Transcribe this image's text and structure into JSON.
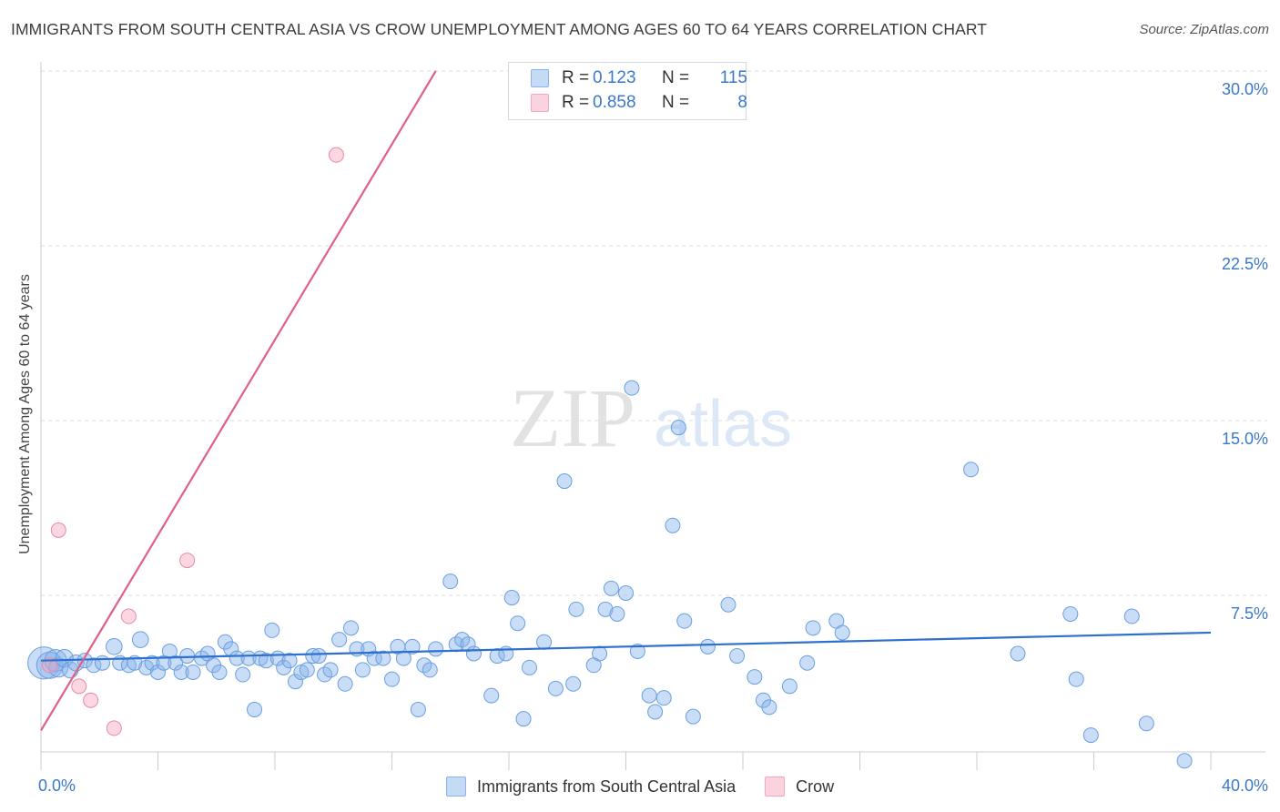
{
  "header": {
    "title": "IMMIGRANTS FROM SOUTH CENTRAL ASIA VS CROW UNEMPLOYMENT AMONG AGES 60 TO 64 YEARS CORRELATION CHART",
    "source": "Source: ZipAtlas.com"
  },
  "watermark": {
    "zip": "ZIP",
    "atlas": "atlas"
  },
  "legend_top": {
    "rows": [
      {
        "r_label": "R =",
        "r_value": "0.123",
        "n_label": "N =",
        "n_value": "115",
        "color": "#8ab4ea"
      },
      {
        "r_label": "R =",
        "r_value": "0.858",
        "n_label": "N =",
        "n_value": "8",
        "color": "#f4a7bd"
      }
    ]
  },
  "legend_bottom": {
    "items": [
      {
        "label": "Immigrants from South Central Asia",
        "color": "#8ab4ea"
      },
      {
        "label": "Crow",
        "color": "#f4a7bd"
      }
    ]
  },
  "chart_data": {
    "type": "scatter",
    "title": "IMMIGRANTS FROM SOUTH CENTRAL ASIA VS CROW UNEMPLOYMENT AMONG AGES 60 TO 64 YEARS CORRELATION CHART",
    "xlabel": "",
    "ylabel": "Unemployment Among Ages 60 to 64 years",
    "xlim": [
      0,
      40
    ],
    "ylim": [
      0,
      30
    ],
    "x_tick_labels": [
      "0.0%",
      "40.0%"
    ],
    "y_ticks": [
      7.5,
      15.0,
      22.5,
      30.0
    ],
    "y_tick_labels": [
      "7.5%",
      "15.0%",
      "22.5%",
      "30.0%"
    ],
    "grid": "horizontal dashed",
    "legend_position": "top-center",
    "series": [
      {
        "name": "Immigrants from South Central Asia",
        "color": "#8ab4ea",
        "stroke": "#6a9fe0",
        "trend": {
          "x": [
            0,
            40
          ],
          "y": [
            4.7,
            5.9
          ],
          "color": "#2f6fd0"
        },
        "points": [
          [
            0.1,
            4.6,
            2.2
          ],
          [
            0.3,
            4.5,
            1.8
          ],
          [
            0.5,
            4.7,
            1.5
          ],
          [
            0.6,
            4.4,
            1.3
          ],
          [
            0.8,
            4.8,
            1.2
          ],
          [
            1.0,
            4.3,
            1.1
          ],
          [
            1.2,
            4.6,
            1.1
          ],
          [
            1.5,
            4.7,
            1.0
          ],
          [
            1.8,
            4.5,
            1.0
          ],
          [
            2.1,
            4.6,
            1.0
          ],
          [
            2.5,
            5.3,
            1.1
          ],
          [
            2.7,
            4.6,
            1.0
          ],
          [
            3.0,
            4.5,
            1.0
          ],
          [
            3.2,
            4.6,
            1.0
          ],
          [
            3.4,
            5.6,
            1.1
          ],
          [
            3.6,
            4.4,
            1.0
          ],
          [
            3.8,
            4.6,
            1.0
          ],
          [
            4.0,
            4.2,
            1.0
          ],
          [
            4.2,
            4.6,
            1.0
          ],
          [
            4.4,
            5.1,
            1.0
          ],
          [
            4.6,
            4.6,
            1.0
          ],
          [
            4.8,
            4.2,
            1.0
          ],
          [
            5.0,
            4.9,
            1.0
          ],
          [
            5.2,
            4.2,
            1.0
          ],
          [
            5.5,
            4.8,
            1.0
          ],
          [
            5.7,
            5.0,
            1.0
          ],
          [
            5.9,
            4.5,
            1.0
          ],
          [
            6.1,
            4.2,
            1.0
          ],
          [
            6.3,
            5.5,
            1.0
          ],
          [
            6.5,
            5.2,
            1.0
          ],
          [
            6.7,
            4.8,
            1.0
          ],
          [
            6.9,
            4.1,
            1.0
          ],
          [
            7.1,
            4.8,
            1.0
          ],
          [
            7.3,
            2.6,
            1.0
          ],
          [
            7.5,
            4.8,
            1.0
          ],
          [
            7.7,
            4.7,
            1.0
          ],
          [
            7.9,
            6.0,
            1.0
          ],
          [
            8.1,
            4.8,
            1.0
          ],
          [
            8.3,
            4.4,
            1.0
          ],
          [
            8.5,
            4.7,
            1.0
          ],
          [
            8.7,
            3.8,
            1.0
          ],
          [
            8.9,
            4.2,
            1.0
          ],
          [
            9.1,
            4.3,
            1.0
          ],
          [
            9.3,
            4.9,
            1.0
          ],
          [
            9.5,
            4.9,
            1.0
          ],
          [
            9.7,
            4.1,
            1.0
          ],
          [
            9.9,
            4.3,
            1.0
          ],
          [
            10.2,
            5.6,
            1.0
          ],
          [
            10.4,
            3.7,
            1.0
          ],
          [
            10.6,
            6.1,
            1.0
          ],
          [
            10.8,
            5.2,
            1.0
          ],
          [
            11.0,
            4.3,
            1.0
          ],
          [
            11.2,
            5.2,
            1.0
          ],
          [
            11.4,
            4.8,
            1.0
          ],
          [
            11.7,
            4.8,
            1.0
          ],
          [
            12.0,
            3.9,
            1.0
          ],
          [
            12.2,
            5.3,
            1.0
          ],
          [
            12.4,
            4.8,
            1.0
          ],
          [
            12.7,
            5.3,
            1.0
          ],
          [
            12.9,
            2.6,
            1.0
          ],
          [
            13.1,
            4.5,
            1.0
          ],
          [
            13.3,
            4.3,
            1.0
          ],
          [
            13.5,
            5.2,
            1.0
          ],
          [
            14.0,
            8.1,
            1.0
          ],
          [
            14.2,
            5.4,
            1.0
          ],
          [
            14.4,
            5.6,
            1.0
          ],
          [
            14.6,
            5.4,
            1.0
          ],
          [
            14.8,
            5.0,
            1.0
          ],
          [
            15.4,
            3.2,
            1.0
          ],
          [
            15.6,
            4.9,
            1.0
          ],
          [
            15.9,
            5.0,
            1.0
          ],
          [
            16.1,
            7.4,
            1.0
          ],
          [
            16.3,
            6.3,
            1.0
          ],
          [
            16.5,
            2.2,
            1.0
          ],
          [
            16.7,
            4.4,
            1.0
          ],
          [
            17.2,
            5.5,
            1.0
          ],
          [
            17.6,
            3.5,
            1.0
          ],
          [
            17.9,
            12.4,
            1.0
          ],
          [
            18.2,
            3.7,
            1.0
          ],
          [
            18.3,
            6.9,
            1.0
          ],
          [
            18.9,
            4.5,
            1.0
          ],
          [
            19.1,
            5.0,
            1.0
          ],
          [
            19.3,
            6.9,
            1.0
          ],
          [
            19.5,
            7.8,
            1.0
          ],
          [
            19.7,
            6.7,
            1.0
          ],
          [
            20.0,
            7.6,
            1.0
          ],
          [
            20.2,
            16.4,
            1.0
          ],
          [
            20.4,
            5.1,
            1.0
          ],
          [
            20.8,
            3.2,
            1.0
          ],
          [
            21.0,
            2.5,
            1.0
          ],
          [
            21.3,
            3.1,
            1.0
          ],
          [
            21.6,
            10.5,
            1.0
          ],
          [
            21.8,
            14.7,
            1.0
          ],
          [
            22.0,
            6.4,
            1.0
          ],
          [
            22.3,
            2.3,
            1.0
          ],
          [
            22.8,
            5.3,
            1.0
          ],
          [
            23.5,
            7.1,
            1.0
          ],
          [
            23.8,
            4.9,
            1.0
          ],
          [
            24.4,
            4.0,
            1.0
          ],
          [
            24.7,
            3.0,
            1.0
          ],
          [
            24.9,
            2.7,
            1.0
          ],
          [
            25.6,
            3.6,
            1.0
          ],
          [
            26.2,
            4.6,
            1.0
          ],
          [
            26.4,
            6.1,
            1.0
          ],
          [
            27.2,
            6.4,
            1.0
          ],
          [
            27.4,
            5.9,
            1.0
          ],
          [
            31.8,
            12.9,
            1.0
          ],
          [
            33.4,
            5.0,
            1.0
          ],
          [
            35.2,
            6.7,
            1.0
          ],
          [
            35.4,
            3.9,
            1.0
          ],
          [
            35.9,
            1.5,
            1.0
          ],
          [
            37.3,
            6.6,
            1.0
          ],
          [
            37.8,
            2.0,
            1.0
          ],
          [
            39.1,
            0.4,
            1.0
          ]
        ]
      },
      {
        "name": "Crow",
        "color": "#f4a7bd",
        "stroke": "#e88aa5",
        "trend": {
          "x": [
            0,
            13.5
          ],
          "y": [
            1.7,
            30.0
          ],
          "color": "#e0608a"
        },
        "points": [
          [
            0.3,
            4.5,
            1.0
          ],
          [
            0.6,
            10.3,
            1.0
          ],
          [
            1.3,
            3.6,
            1.0
          ],
          [
            1.7,
            3.0,
            1.0
          ],
          [
            2.5,
            1.8,
            1.0
          ],
          [
            3.0,
            6.6,
            1.0
          ],
          [
            5.0,
            9.0,
            1.0
          ],
          [
            10.1,
            26.4,
            1.0
          ]
        ]
      }
    ]
  }
}
